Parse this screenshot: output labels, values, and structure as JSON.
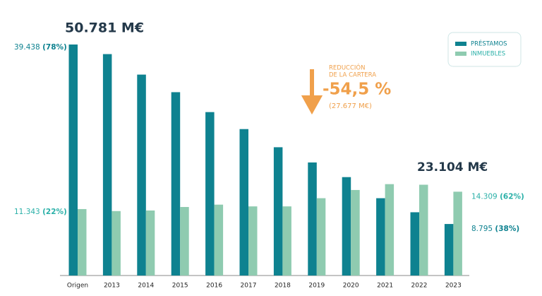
{
  "chart_data": {
    "type": "bar",
    "categories": [
      "Origen",
      "2013",
      "2014",
      "2015",
      "2016",
      "2017",
      "2018",
      "2019",
      "2020",
      "2021",
      "2022",
      "2023"
    ],
    "series": [
      {
        "name": "PRÉSTAMOS",
        "color": "#0e8290",
        "values": [
          39438,
          37800,
          34300,
          31300,
          27900,
          25000,
          21900,
          19300,
          16800,
          13200,
          10800,
          8795
        ],
        "value_labels": [
          "39.438",
          null,
          null,
          null,
          null,
          null,
          null,
          null,
          null,
          null,
          null,
          "8.795"
        ],
        "share_labels": [
          "(78%)",
          null,
          null,
          null,
          null,
          null,
          null,
          null,
          null,
          null,
          null,
          "(38%)"
        ]
      },
      {
        "name": "INMUEBLES",
        "color": "#8fcbb0",
        "values": [
          11343,
          11000,
          11100,
          11700,
          12100,
          11800,
          11800,
          13200,
          14600,
          15600,
          15500,
          14309
        ],
        "value_labels": [
          "11.343",
          null,
          null,
          null,
          null,
          null,
          null,
          null,
          null,
          null,
          null,
          "14.309"
        ],
        "share_labels": [
          "(22%)",
          null,
          null,
          null,
          null,
          null,
          null,
          null,
          null,
          null,
          null,
          "(62%)"
        ]
      }
    ],
    "annotations": {
      "total_start": "50.781 M€",
      "total_end": "23.104 M€",
      "reduction_title": [
        "REDUCCIÓN",
        "DE LA CARTERA"
      ],
      "reduction_value": "-54,5 %",
      "reduction_amount": "(27.677 M€)"
    },
    "legend": "top-right"
  }
}
